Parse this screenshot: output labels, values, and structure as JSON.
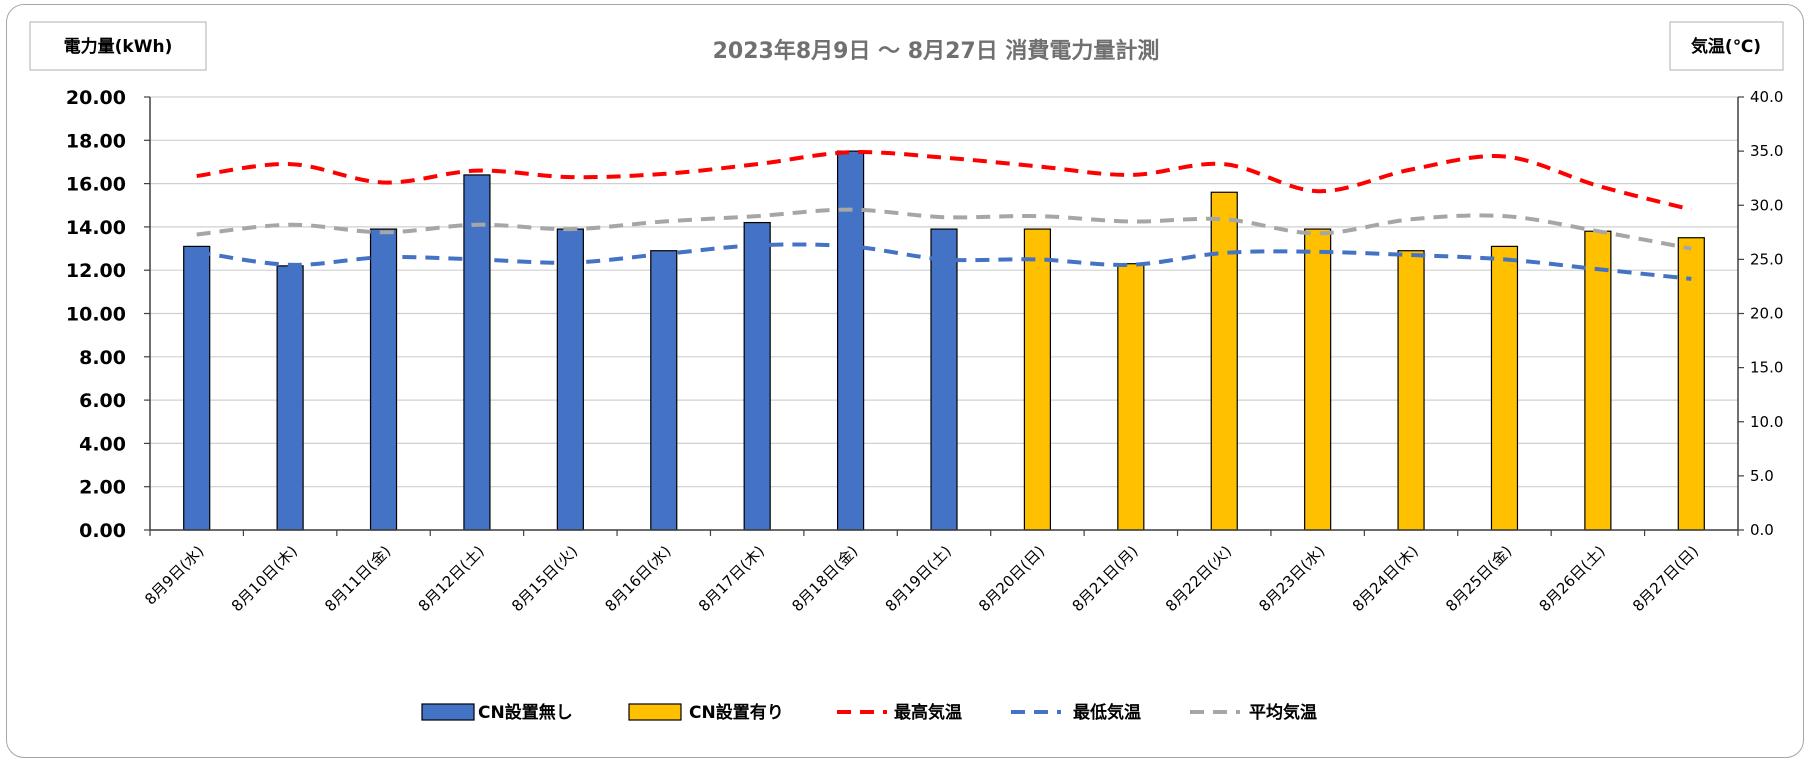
{
  "chart_data": {
    "type": "bar",
    "title": "2023年8月9日 ～ 8月27日 消費電力量計測",
    "ylabel": "電力量(kWh)",
    "y2label": "気温(℃)",
    "ylim": [
      0,
      20
    ],
    "y2lim": [
      0,
      40
    ],
    "yticks": [
      "0.00",
      "2.00",
      "4.00",
      "6.00",
      "8.00",
      "10.00",
      "12.00",
      "14.00",
      "16.00",
      "18.00",
      "20.00"
    ],
    "y2ticks": [
      "0.0",
      "5.0",
      "10.0",
      "15.0",
      "20.0",
      "25.0",
      "30.0",
      "35.0",
      "40.0"
    ],
    "grid": true,
    "legend_position": "bottom",
    "categories": [
      "8月9日(水)",
      "8月10日(木)",
      "8月11日(金)",
      "8月12日(土)",
      "8月15日(火)",
      "8月16日(水)",
      "8月17日(木)",
      "8月18日(金)",
      "8月19日(土)",
      "8月20日(日)",
      "8月21日(月)",
      "8月22日(火)",
      "8月23日(水)",
      "8月24日(木)",
      "8月25日(金)",
      "8月26日(土)",
      "8月27日(日)"
    ],
    "series": [
      {
        "name": "CN設置無し",
        "kind": "bar",
        "axis": "left",
        "color": "#4472c4",
        "values": [
          13.1,
          12.2,
          13.9,
          16.4,
          13.9,
          12.9,
          14.2,
          17.5,
          13.9,
          null,
          null,
          null,
          null,
          null,
          null,
          null,
          null
        ]
      },
      {
        "name": "CN設置有り",
        "kind": "bar",
        "axis": "left",
        "color": "#ffc000",
        "values": [
          null,
          null,
          null,
          null,
          null,
          null,
          null,
          null,
          null,
          13.9,
          12.3,
          15.6,
          13.9,
          12.9,
          13.1,
          13.8,
          13.5
        ]
      },
      {
        "name": "最高気温",
        "kind": "line",
        "axis": "right",
        "color": "#ff0000",
        "values": [
          32.7,
          33.8,
          32.1,
          33.2,
          32.6,
          32.9,
          33.8,
          34.9,
          34.4,
          33.6,
          32.8,
          33.8,
          31.3,
          33.3,
          34.5,
          31.8,
          29.6
        ]
      },
      {
        "name": "最低気温",
        "kind": "line",
        "axis": "right",
        "color": "#4472c4",
        "values": [
          25.7,
          24.5,
          25.2,
          25.0,
          24.7,
          25.5,
          26.3,
          26.2,
          25.0,
          25.0,
          24.5,
          25.6,
          25.7,
          25.4,
          25.0,
          24.1,
          23.2
        ]
      },
      {
        "name": "平均気温",
        "kind": "line",
        "axis": "right",
        "color": "#a6a6a6",
        "values": [
          27.3,
          28.2,
          27.5,
          28.2,
          27.8,
          28.5,
          29.0,
          29.6,
          28.9,
          29.0,
          28.5,
          28.7,
          27.4,
          28.7,
          29.0,
          27.6,
          26.0
        ]
      }
    ]
  }
}
